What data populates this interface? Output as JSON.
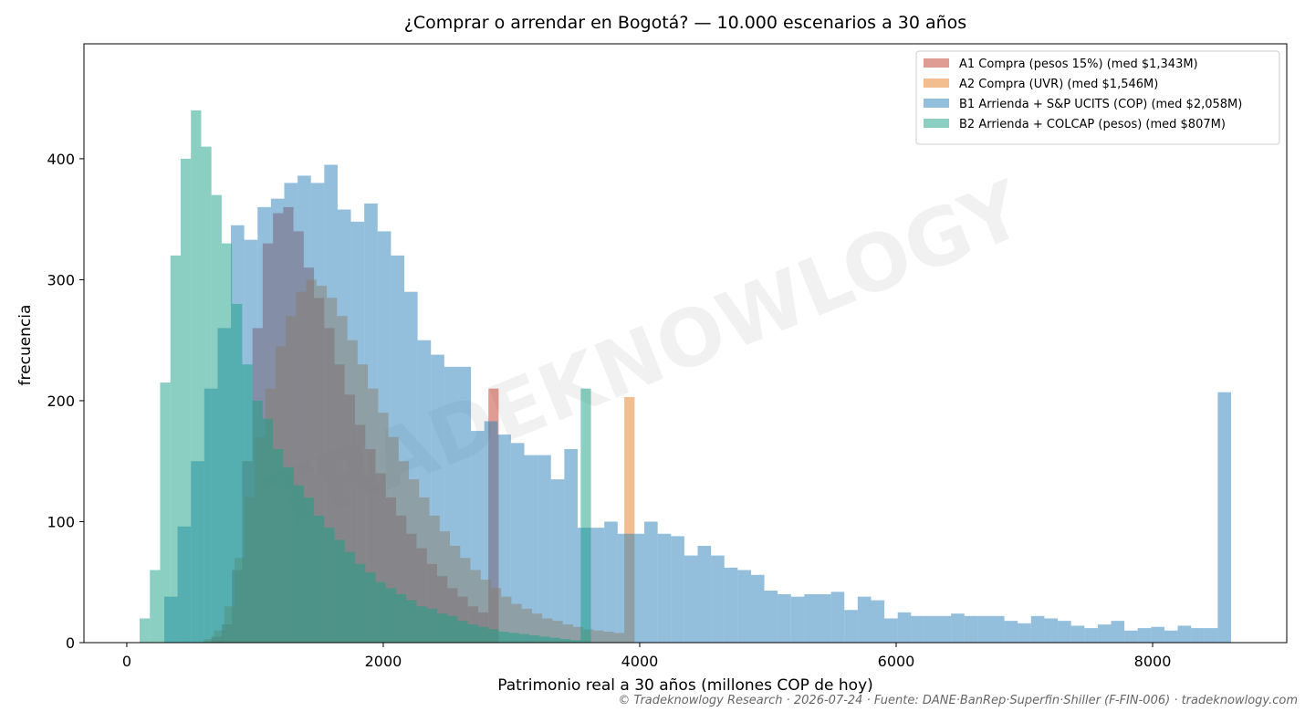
{
  "chart_data": {
    "type": "histogram",
    "title": "¿Comprar o arrendar en Bogotá? — 10.000 escenarios a 30 años",
    "xlabel": "Patrimonio real a 30 años (millones COP de hoy)",
    "ylabel": "frecuencia",
    "watermark": "TRADEKNOWLOGY",
    "footer": "© Tradeknowlogy Research   ·   2026-07-24   ·   Fuente: DANE·BanRep·Superfin·Shiller (F-FIN-006)   ·   tradeknowlogy.com",
    "xlim": [
      -334,
      9046
    ],
    "ylim": [
      0,
      495
    ],
    "xticks": [
      0,
      2000,
      4000,
      6000,
      8000
    ],
    "yticks": [
      0,
      100,
      200,
      300,
      400
    ],
    "grid": false,
    "legend": "upper right",
    "opacity": 0.5,
    "series": [
      {
        "name": "A1 Compra (pesos 15%) (med $1,343M)",
        "color": "#c0392b",
        "bins": [
          660,
          740,
          820,
          900,
          980,
          1060,
          1140,
          1220,
          1300,
          1380,
          1460,
          1540,
          1620,
          1700,
          1780,
          1860,
          1940,
          2020,
          2100,
          2180,
          2260,
          2340,
          2420,
          2500,
          2580,
          2660,
          2740,
          2820,
          2900
        ],
        "values": [
          5,
          15,
          60,
          150,
          260,
          330,
          355,
          360,
          340,
          310,
          285,
          260,
          230,
          205,
          180,
          160,
          140,
          120,
          105,
          90,
          78,
          65,
          55,
          45,
          38,
          30,
          25,
          210
        ]
      },
      {
        "name": "A2 Compra (UVR) (med $1,546M)",
        "color": "#e67e22",
        "bins": [
          600,
          680,
          760,
          840,
          920,
          1000,
          1080,
          1160,
          1240,
          1320,
          1400,
          1480,
          1560,
          1640,
          1720,
          1800,
          1880,
          1960,
          2040,
          2120,
          2200,
          2280,
          2360,
          2440,
          2520,
          2600,
          2680,
          2760,
          2840,
          2920,
          3000,
          3080,
          3160,
          3240,
          3320,
          3400,
          3480,
          3560,
          3640,
          3720,
          3800,
          3880,
          3960
        ],
        "values": [
          3,
          10,
          30,
          70,
          120,
          170,
          210,
          245,
          270,
          290,
          300,
          295,
          285,
          270,
          250,
          230,
          210,
          190,
          170,
          150,
          135,
          120,
          105,
          92,
          80,
          70,
          60,
          52,
          45,
          38,
          32,
          28,
          24,
          20,
          18,
          15,
          13,
          11,
          10,
          9,
          8,
          203
        ]
      },
      {
        "name": "B1 Arrienda + S&P UCITS (COP) (med $2,058M)",
        "color": "#2980b9",
        "bins": [
          292,
          396,
          500,
          604,
          708,
          812,
          916,
          1020,
          1124,
          1228,
          1332,
          1436,
          1540,
          1644,
          1748,
          1852,
          1956,
          2060,
          2164,
          2268,
          2372,
          2476,
          2580,
          2684,
          2788,
          2892,
          2996,
          3100,
          3204,
          3308,
          3412,
          3516,
          3620,
          3724,
          3828,
          3932,
          4036,
          4140,
          4244,
          4348,
          4452,
          4556,
          4660,
          4764,
          4868,
          4972,
          5076,
          5180,
          5284,
          5388,
          5492,
          5596,
          5700,
          5804,
          5908,
          6012,
          6116,
          6220,
          6324,
          6428,
          6532,
          6636,
          6740,
          6844,
          6948,
          7052,
          7156,
          7260,
          7364,
          7468,
          7572,
          7676,
          7780,
          7884,
          7988,
          8092,
          8196,
          8300,
          8404,
          8508,
          8612
        ],
        "values": [
          38,
          96,
          150,
          210,
          260,
          345,
          333,
          360,
          367,
          380,
          386,
          380,
          395,
          358,
          348,
          363,
          340,
          320,
          290,
          250,
          238,
          228,
          228,
          175,
          183,
          172,
          165,
          155,
          155,
          135,
          160,
          95,
          95,
          100,
          90,
          90,
          100,
          90,
          88,
          72,
          80,
          72,
          62,
          60,
          56,
          43,
          40,
          38,
          40,
          40,
          42,
          27,
          38,
          35,
          20,
          25,
          22,
          22,
          22,
          24,
          22,
          22,
          22,
          18,
          16,
          22,
          20,
          18,
          14,
          12,
          15,
          18,
          10,
          12,
          13,
          10,
          14,
          12,
          12,
          207
        ]
      },
      {
        "name": "B2 Arrienda + COLCAP (pesos) (med $807M)",
        "color": "#16a085",
        "bins": [
          100,
          180,
          260,
          340,
          420,
          500,
          580,
          660,
          740,
          820,
          900,
          980,
          1060,
          1140,
          1220,
          1300,
          1380,
          1460,
          1540,
          1620,
          1700,
          1780,
          1860,
          1940,
          2020,
          2100,
          2180,
          2260,
          2340,
          2420,
          2500,
          2580,
          2660,
          2740,
          2820,
          2900,
          2980,
          3060,
          3140,
          3220,
          3300,
          3380,
          3460,
          3540,
          3620
        ],
        "values": [
          20,
          60,
          215,
          320,
          400,
          440,
          410,
          370,
          330,
          280,
          230,
          200,
          185,
          160,
          145,
          130,
          120,
          105,
          95,
          85,
          75,
          65,
          58,
          50,
          45,
          40,
          35,
          30,
          28,
          24,
          22,
          18,
          15,
          13,
          11,
          9,
          8,
          7,
          6,
          5,
          4,
          3,
          2,
          210
        ]
      }
    ]
  }
}
